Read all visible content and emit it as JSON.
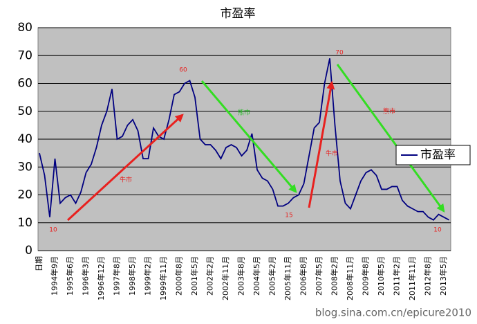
{
  "chart_data": {
    "type": "line",
    "title": "市盈率",
    "categories": [
      "日期",
      null,
      null,
      "1994年9月",
      null,
      null,
      "1995年6月",
      null,
      null,
      "1996年3月",
      null,
      null,
      "1996年12月",
      null,
      null,
      "1997年8月",
      null,
      null,
      "1998年5月",
      null,
      null,
      "1999年2月",
      null,
      null,
      "1999年11月",
      null,
      null,
      "2000年8月",
      null,
      null,
      "2001年5月",
      null,
      null,
      "2002年2月",
      null,
      null,
      "2002年11月",
      null,
      null,
      "2003年8月",
      null,
      null,
      "2004年5月",
      null,
      null,
      "2005年2月",
      null,
      null,
      "2005年11月",
      null,
      null,
      "2006年8月",
      null,
      null,
      "2007年5月",
      null,
      null,
      "2008年2月",
      null,
      null,
      "2008年11月",
      null,
      null,
      "2009年8月",
      null,
      null,
      "2010年5月",
      null,
      null,
      "2011年2月",
      null,
      null,
      "2011年11月",
      null,
      null,
      "2012年8月",
      null,
      null,
      "2013年5月",
      null
    ],
    "series": [
      {
        "name": "市盈率",
        "color": "#000080",
        "values": [
          35,
          27,
          12,
          33,
          17,
          19,
          20,
          17,
          21,
          28,
          31,
          37,
          45,
          50,
          58,
          40,
          41,
          45,
          47,
          43,
          33,
          33,
          44,
          41,
          40,
          47,
          56,
          57,
          60,
          61,
          55,
          40,
          38,
          38,
          36,
          33,
          37,
          38,
          37,
          34,
          36,
          42,
          29,
          26,
          25,
          22,
          16,
          16,
          17,
          19,
          20,
          24,
          34,
          44,
          46,
          60,
          69,
          45,
          25,
          17,
          15,
          20,
          25,
          28,
          29,
          27,
          22,
          22,
          23,
          23,
          18,
          16,
          15,
          14,
          14,
          12,
          11,
          13,
          12,
          11
        ]
      }
    ],
    "ylim": [
      0,
      80
    ],
    "yticks": [
      0,
      10,
      20,
      30,
      40,
      50,
      60,
      70,
      80
    ],
    "grid": true,
    "annotations": [
      "10",
      "牛市",
      "60",
      "熊市",
      "15",
      "牛市",
      "70",
      "熊市",
      "10"
    ],
    "watermark": "blog.sina.com.cn/epicure2010"
  }
}
